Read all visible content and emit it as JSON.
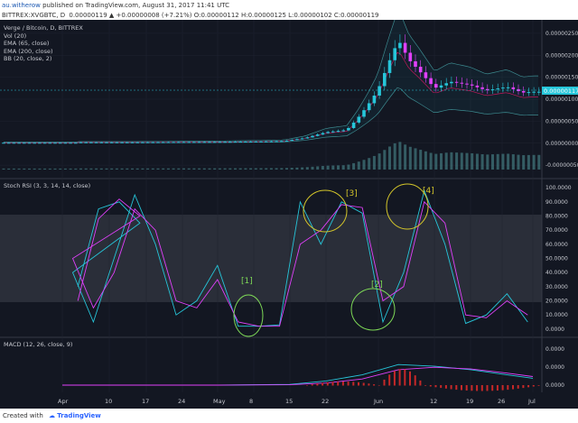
{
  "header": {
    "author": "au.witherow",
    "published": "published on TradingView.com, August 31, 2017 11:41 UTC"
  },
  "symbol_bar": {
    "ticker": "BITTREX:XVGBTC, D",
    "quote": "0.00000119 ▲ +0.00000008 (+7.21%) O:0.00000112 H:0.00000125 L:0.00000102 C:0.00000119"
  },
  "main_legend": {
    "title": "Verge / Bitcoin, D, BITTREX",
    "vol": "Vol (20)",
    "ema65": "EMA (65, close)",
    "ema200": "EMA (200, close)",
    "bb": "BB (20, close, 2)"
  },
  "price_tag": "0.00000117",
  "rsi_legend": "Stoch RSI (3, 3, 14, 14, close)",
  "macd_legend": "MACD (12, 26, close, 9)",
  "annotations": [
    "[1]",
    "[2]",
    "[3]",
    "[4]"
  ],
  "footer": {
    "created": "Created with",
    "brand": "TradingView"
  },
  "colors": {
    "background": "#131722",
    "up": "#26c6da",
    "down": "#e040fb",
    "annotation": "#d4c62a",
    "circle_green": "#7ed957",
    "stoch_k": "#26c6da",
    "stoch_d": "#e040fb"
  },
  "chart_data": [
    {
      "type": "candlestick",
      "title": "Verge / Bitcoin, D, BITTREX",
      "x": [
        "Apr",
        "10",
        "17",
        "24",
        "May",
        "8",
        "15",
        "22",
        "Jun",
        "12",
        "19",
        "26",
        "Jul"
      ],
      "y_ticks": [
        "0.00000250",
        "0.00000200",
        "0.00000150",
        "0.00000100",
        "0.00000050",
        "0.00000000",
        "-0.00000050"
      ],
      "ylim": [
        -6e-07,
        2.6e-06
      ],
      "series": [
        {
          "name": "close",
          "x": [
            "Mar 18",
            "Apr 1",
            "Apr 15",
            "May 1",
            "May 10",
            "May 14",
            "May 18",
            "May 22",
            "May 26",
            "May 28",
            "May 30",
            "Jun 1",
            "Jun 3",
            "Jun 5",
            "Jun 7",
            "Jun 9",
            "Jun 12",
            "Jun 15",
            "Jun 19",
            "Jun 22",
            "Jun 26",
            "Jun 29",
            "Jul 1"
          ],
          "values": [
            1e-08,
            2e-08,
            2e-08,
            3e-08,
            4e-08,
            5e-08,
            1.2e-07,
            2.5e-07,
            3e-07,
            5.5e-07,
            8.5e-07,
            1.2e-06,
            1.8e-06,
            2.35e-06,
            1.9e-06,
            1.65e-06,
            1.25e-06,
            1.4e-06,
            1.32e-06,
            1.2e-06,
            1.28e-06,
            1.15e-06,
            1.17e-06
          ]
        }
      ]
    },
    {
      "type": "line",
      "title": "Stoch RSI (3, 3, 14, 14, close)",
      "y_ticks": [
        "100.0000",
        "90.0000",
        "80.0000",
        "70.0000",
        "60.0000",
        "50.0000",
        "40.0000",
        "30.0000",
        "20.0000",
        "10.0000",
        "0.0000"
      ],
      "ylim": [
        -2,
        102
      ],
      "x": [
        "Mar 18",
        "Mar 22",
        "Mar 26",
        "Mar 30",
        "Apr 3",
        "Apr 7",
        "Apr 11",
        "Apr 15",
        "Apr 19",
        "Apr 23",
        "Apr 27",
        "May 1",
        "May 5",
        "May 9",
        "May 13",
        "May 17",
        "May 21",
        "May 25",
        "May 29",
        "Jun 2",
        "Jun 6",
        "Jun 10",
        "Jun 14",
        "Jun 18",
        "Jun 22",
        "Jun 26",
        "Jun 30"
      ],
      "series": [
        {
          "name": "K",
          "values": [
            30,
            85,
            90,
            75,
            40,
            5,
            50,
            95,
            60,
            10,
            20,
            45,
            2,
            2,
            3,
            90,
            60,
            90,
            82,
            5,
            40,
            98,
            60,
            4,
            10,
            25,
            5
          ]
        },
        {
          "name": "D",
          "values": [
            20,
            78,
            92,
            80,
            50,
            15,
            40,
            85,
            70,
            20,
            15,
            35,
            5,
            2,
            2,
            60,
            70,
            88,
            86,
            20,
            30,
            90,
            75,
            10,
            8,
            20,
            10
          ]
        }
      ]
    },
    {
      "type": "line",
      "title": "MACD (12, 26, close, 9)",
      "y_ticks": [
        "0.0000",
        "0.0000",
        "0.0000"
      ],
      "x": [
        "Mar 18",
        "Apr 1",
        "Apr 15",
        "May 1",
        "May 15",
        "May 22",
        "May 29",
        "Jun 5",
        "Jun 12",
        "Jun 19",
        "Jun 26",
        "Jul 1"
      ],
      "series": [
        {
          "name": "MACD",
          "values": [
            0,
            0,
            0,
            0,
            0.02,
            0.12,
            0.3,
            0.6,
            0.55,
            0.45,
            0.3,
            0.2
          ]
        },
        {
          "name": "Signal",
          "values": [
            0,
            0,
            0,
            0,
            0.01,
            0.06,
            0.18,
            0.45,
            0.52,
            0.47,
            0.35,
            0.25
          ]
        }
      ]
    }
  ]
}
